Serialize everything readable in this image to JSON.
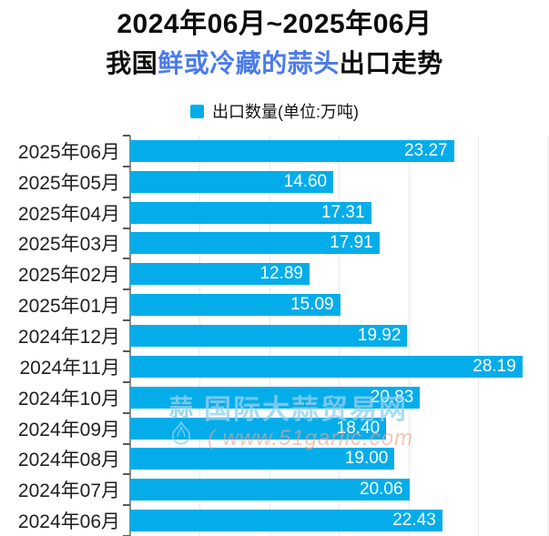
{
  "title": {
    "line1": "2024年06月~2025年06月",
    "line2_prefix": "我国",
    "line2_highlight": "鲜或冷藏的蒜头",
    "line2_suffix": "出口走势"
  },
  "legend": {
    "label": "出口数量(单位:万吨)",
    "swatch_color": "#04adea"
  },
  "watermark": {
    "logo_char": "蒜",
    "site_name": "国际大蒜贸易网",
    "url": "( www.51garlic.com"
  },
  "chart_data": {
    "type": "bar",
    "orientation": "horizontal",
    "title": "2024年06月~2025年06月 我国鲜或冷藏的蒜头出口走势",
    "series_name": "出口数量(单位:万吨)",
    "categories": [
      "2025年06月",
      "2025年05月",
      "2025年04月",
      "2025年03月",
      "2025年02月",
      "2025年01月",
      "2024年12月",
      "2024年11月",
      "2024年10月",
      "2024年09月",
      "2024年08月",
      "2024年07月",
      "2024年06月"
    ],
    "values": [
      23.27,
      14.6,
      17.31,
      17.91,
      12.89,
      15.09,
      19.92,
      28.19,
      20.83,
      18.4,
      19.0,
      20.06,
      22.43
    ],
    "value_labels": [
      "23.27",
      "14.60",
      "17.31",
      "17.91",
      "12.89",
      "15.09",
      "19.92",
      "28.19",
      "20.83",
      "18.40",
      "19.00",
      "20.06",
      "22.43"
    ],
    "xlabel": "",
    "ylabel": "",
    "xlim": [
      0,
      30.1
    ],
    "gridline_values": [
      5,
      10,
      15,
      20,
      25,
      30
    ],
    "grid": true,
    "legend_position": "top",
    "bar_color": "#04adea",
    "value_label_color": "#ffffff"
  },
  "colors": {
    "bar": "#04adea",
    "title_highlight": "#4b7bea",
    "axis": "#8c8c8c",
    "tick": "#5a5a5a",
    "gridline": "#e8e8e8"
  }
}
